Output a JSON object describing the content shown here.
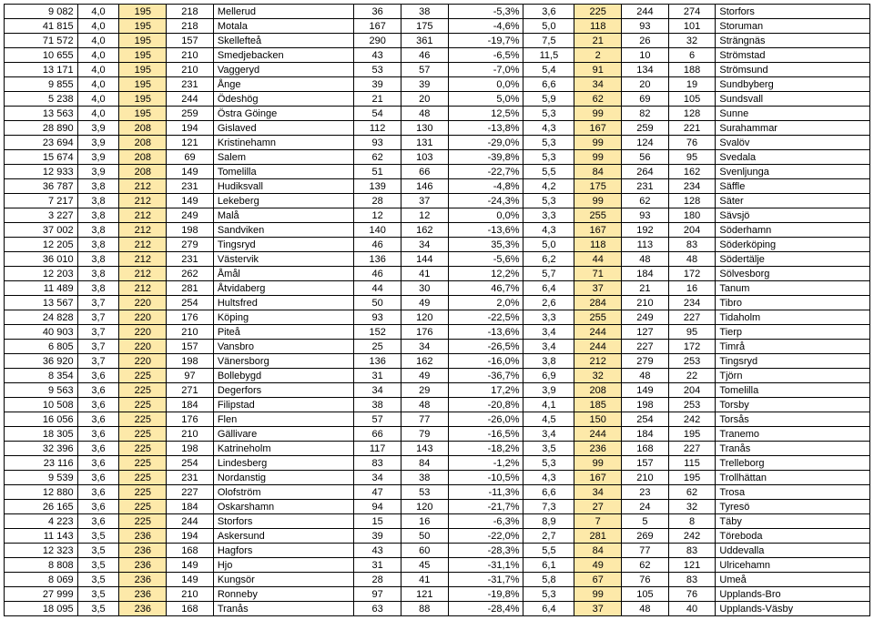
{
  "colors": {
    "highlight": "#fde9a9",
    "border": "#000000",
    "background": "#ffffff",
    "text": "#000000"
  },
  "columns": [
    {
      "align": "right",
      "highlight": false
    },
    {
      "align": "center",
      "highlight": false
    },
    {
      "align": "center",
      "highlight": true
    },
    {
      "align": "center",
      "highlight": false
    },
    {
      "align": "left",
      "highlight": false
    },
    {
      "align": "center",
      "highlight": false
    },
    {
      "align": "center",
      "highlight": false
    },
    {
      "align": "right",
      "highlight": false
    },
    {
      "align": "center",
      "highlight": false
    },
    {
      "align": "center",
      "highlight": true
    },
    {
      "align": "center",
      "highlight": false
    },
    {
      "align": "center",
      "highlight": false
    },
    {
      "align": "left",
      "highlight": false
    }
  ],
  "rows": [
    [
      "9 082",
      "4,0",
      "195",
      "218",
      "Mellerud",
      "36",
      "38",
      "-5,3%",
      "3,6",
      "225",
      "244",
      "274",
      "Storfors"
    ],
    [
      "41 815",
      "4,0",
      "195",
      "218",
      "Motala",
      "167",
      "175",
      "-4,6%",
      "5,0",
      "118",
      "93",
      "101",
      "Storuman"
    ],
    [
      "71 572",
      "4,0",
      "195",
      "157",
      "Skellefteå",
      "290",
      "361",
      "-19,7%",
      "7,5",
      "21",
      "26",
      "32",
      "Strängnäs"
    ],
    [
      "10 655",
      "4,0",
      "195",
      "210",
      "Smedjebacken",
      "43",
      "46",
      "-6,5%",
      "11,5",
      "2",
      "10",
      "6",
      "Strömstad"
    ],
    [
      "13 171",
      "4,0",
      "195",
      "210",
      "Vaggeryd",
      "53",
      "57",
      "-7,0%",
      "5,4",
      "91",
      "134",
      "188",
      "Strömsund"
    ],
    [
      "9 855",
      "4,0",
      "195",
      "231",
      "Ånge",
      "39",
      "39",
      "0,0%",
      "6,6",
      "34",
      "20",
      "19",
      "Sundbyberg"
    ],
    [
      "5 238",
      "4,0",
      "195",
      "244",
      "Ödeshög",
      "21",
      "20",
      "5,0%",
      "5,9",
      "62",
      "69",
      "105",
      "Sundsvall"
    ],
    [
      "13 563",
      "4,0",
      "195",
      "259",
      "Östra Göinge",
      "54",
      "48",
      "12,5%",
      "5,3",
      "99",
      "82",
      "128",
      "Sunne"
    ],
    [
      "28 890",
      "3,9",
      "208",
      "194",
      "Gislaved",
      "112",
      "130",
      "-13,8%",
      "4,3",
      "167",
      "259",
      "221",
      "Surahammar"
    ],
    [
      "23 694",
      "3,9",
      "208",
      "121",
      "Kristinehamn",
      "93",
      "131",
      "-29,0%",
      "5,3",
      "99",
      "124",
      "76",
      "Svalöv"
    ],
    [
      "15 674",
      "3,9",
      "208",
      "69",
      "Salem",
      "62",
      "103",
      "-39,8%",
      "5,3",
      "99",
      "56",
      "95",
      "Svedala"
    ],
    [
      "12 933",
      "3,9",
      "208",
      "149",
      "Tomelilla",
      "51",
      "66",
      "-22,7%",
      "5,5",
      "84",
      "264",
      "162",
      "Svenljunga"
    ],
    [
      "36 787",
      "3,8",
      "212",
      "231",
      "Hudiksvall",
      "139",
      "146",
      "-4,8%",
      "4,2",
      "175",
      "231",
      "234",
      "Säffle"
    ],
    [
      "7 217",
      "3,8",
      "212",
      "149",
      "Lekeberg",
      "28",
      "37",
      "-24,3%",
      "5,3",
      "99",
      "62",
      "128",
      "Säter"
    ],
    [
      "3 227",
      "3,8",
      "212",
      "249",
      "Malå",
      "12",
      "12",
      "0,0%",
      "3,3",
      "255",
      "93",
      "180",
      "Sävsjö"
    ],
    [
      "37 002",
      "3,8",
      "212",
      "198",
      "Sandviken",
      "140",
      "162",
      "-13,6%",
      "4,3",
      "167",
      "192",
      "204",
      "Söderhamn"
    ],
    [
      "12 205",
      "3,8",
      "212",
      "279",
      "Tingsryd",
      "46",
      "34",
      "35,3%",
      "5,0",
      "118",
      "113",
      "83",
      "Söderköping"
    ],
    [
      "36 010",
      "3,8",
      "212",
      "231",
      "Västervik",
      "136",
      "144",
      "-5,6%",
      "6,2",
      "44",
      "48",
      "48",
      "Södertälje"
    ],
    [
      "12 203",
      "3,8",
      "212",
      "262",
      "Åmål",
      "46",
      "41",
      "12,2%",
      "5,7",
      "71",
      "184",
      "172",
      "Sölvesborg"
    ],
    [
      "11 489",
      "3,8",
      "212",
      "281",
      "Åtvidaberg",
      "44",
      "30",
      "46,7%",
      "6,4",
      "37",
      "21",
      "16",
      "Tanum"
    ],
    [
      "13 567",
      "3,7",
      "220",
      "254",
      "Hultsfred",
      "50",
      "49",
      "2,0%",
      "2,6",
      "284",
      "210",
      "234",
      "Tibro"
    ],
    [
      "24 828",
      "3,7",
      "220",
      "176",
      "Köping",
      "93",
      "120",
      "-22,5%",
      "3,3",
      "255",
      "249",
      "227",
      "Tidaholm"
    ],
    [
      "40 903",
      "3,7",
      "220",
      "210",
      "Piteå",
      "152",
      "176",
      "-13,6%",
      "3,4",
      "244",
      "127",
      "95",
      "Tierp"
    ],
    [
      "6 805",
      "3,7",
      "220",
      "157",
      "Vansbro",
      "25",
      "34",
      "-26,5%",
      "3,4",
      "244",
      "227",
      "172",
      "Timrå"
    ],
    [
      "36 920",
      "3,7",
      "220",
      "198",
      "Vänersborg",
      "136",
      "162",
      "-16,0%",
      "3,8",
      "212",
      "279",
      "253",
      "Tingsryd"
    ],
    [
      "8 354",
      "3,6",
      "225",
      "97",
      "Bollebygd",
      "31",
      "49",
      "-36,7%",
      "6,9",
      "32",
      "48",
      "22",
      "Tjörn"
    ],
    [
      "9 563",
      "3,6",
      "225",
      "271",
      "Degerfors",
      "34",
      "29",
      "17,2%",
      "3,9",
      "208",
      "149",
      "204",
      "Tomelilla"
    ],
    [
      "10 508",
      "3,6",
      "225",
      "184",
      "Filipstad",
      "38",
      "48",
      "-20,8%",
      "4,1",
      "185",
      "198",
      "253",
      "Torsby"
    ],
    [
      "16 056",
      "3,6",
      "225",
      "176",
      "Flen",
      "57",
      "77",
      "-26,0%",
      "4,5",
      "150",
      "254",
      "242",
      "Torsås"
    ],
    [
      "18 305",
      "3,6",
      "225",
      "210",
      "Gällivare",
      "66",
      "79",
      "-16,5%",
      "3,4",
      "244",
      "184",
      "195",
      "Tranemo"
    ],
    [
      "32 396",
      "3,6",
      "225",
      "198",
      "Katrineholm",
      "117",
      "143",
      "-18,2%",
      "3,5",
      "236",
      "168",
      "227",
      "Tranås"
    ],
    [
      "23 116",
      "3,6",
      "225",
      "254",
      "Lindesberg",
      "83",
      "84",
      "-1,2%",
      "5,3",
      "99",
      "157",
      "115",
      "Trelleborg"
    ],
    [
      "9 539",
      "3,6",
      "225",
      "231",
      "Nordanstig",
      "34",
      "38",
      "-10,5%",
      "4,3",
      "167",
      "210",
      "195",
      "Trollhättan"
    ],
    [
      "12 880",
      "3,6",
      "225",
      "227",
      "Olofström",
      "47",
      "53",
      "-11,3%",
      "6,6",
      "34",
      "23",
      "62",
      "Trosa"
    ],
    [
      "26 165",
      "3,6",
      "225",
      "184",
      "Oskarshamn",
      "94",
      "120",
      "-21,7%",
      "7,3",
      "27",
      "24",
      "32",
      "Tyresö"
    ],
    [
      "4 223",
      "3,6",
      "225",
      "244",
      "Storfors",
      "15",
      "16",
      "-6,3%",
      "8,9",
      "7",
      "5",
      "8",
      "Täby"
    ],
    [
      "11 143",
      "3,5",
      "236",
      "194",
      "Askersund",
      "39",
      "50",
      "-22,0%",
      "2,7",
      "281",
      "269",
      "242",
      "Töreboda"
    ],
    [
      "12 323",
      "3,5",
      "236",
      "168",
      "Hagfors",
      "43",
      "60",
      "-28,3%",
      "5,5",
      "84",
      "77",
      "83",
      "Uddevalla"
    ],
    [
      "8 808",
      "3,5",
      "236",
      "149",
      "Hjo",
      "31",
      "45",
      "-31,1%",
      "6,1",
      "49",
      "62",
      "121",
      "Ulricehamn"
    ],
    [
      "8 069",
      "3,5",
      "236",
      "149",
      "Kungsör",
      "28",
      "41",
      "-31,7%",
      "5,8",
      "67",
      "76",
      "83",
      "Umeå"
    ],
    [
      "27 999",
      "3,5",
      "236",
      "210",
      "Ronneby",
      "97",
      "121",
      "-19,8%",
      "5,3",
      "99",
      "105",
      "76",
      "Upplands-Bro"
    ],
    [
      "18 095",
      "3,5",
      "236",
      "168",
      "Tranås",
      "63",
      "88",
      "-28,4%",
      "6,4",
      "37",
      "48",
      "40",
      "Upplands-Väsby"
    ]
  ]
}
